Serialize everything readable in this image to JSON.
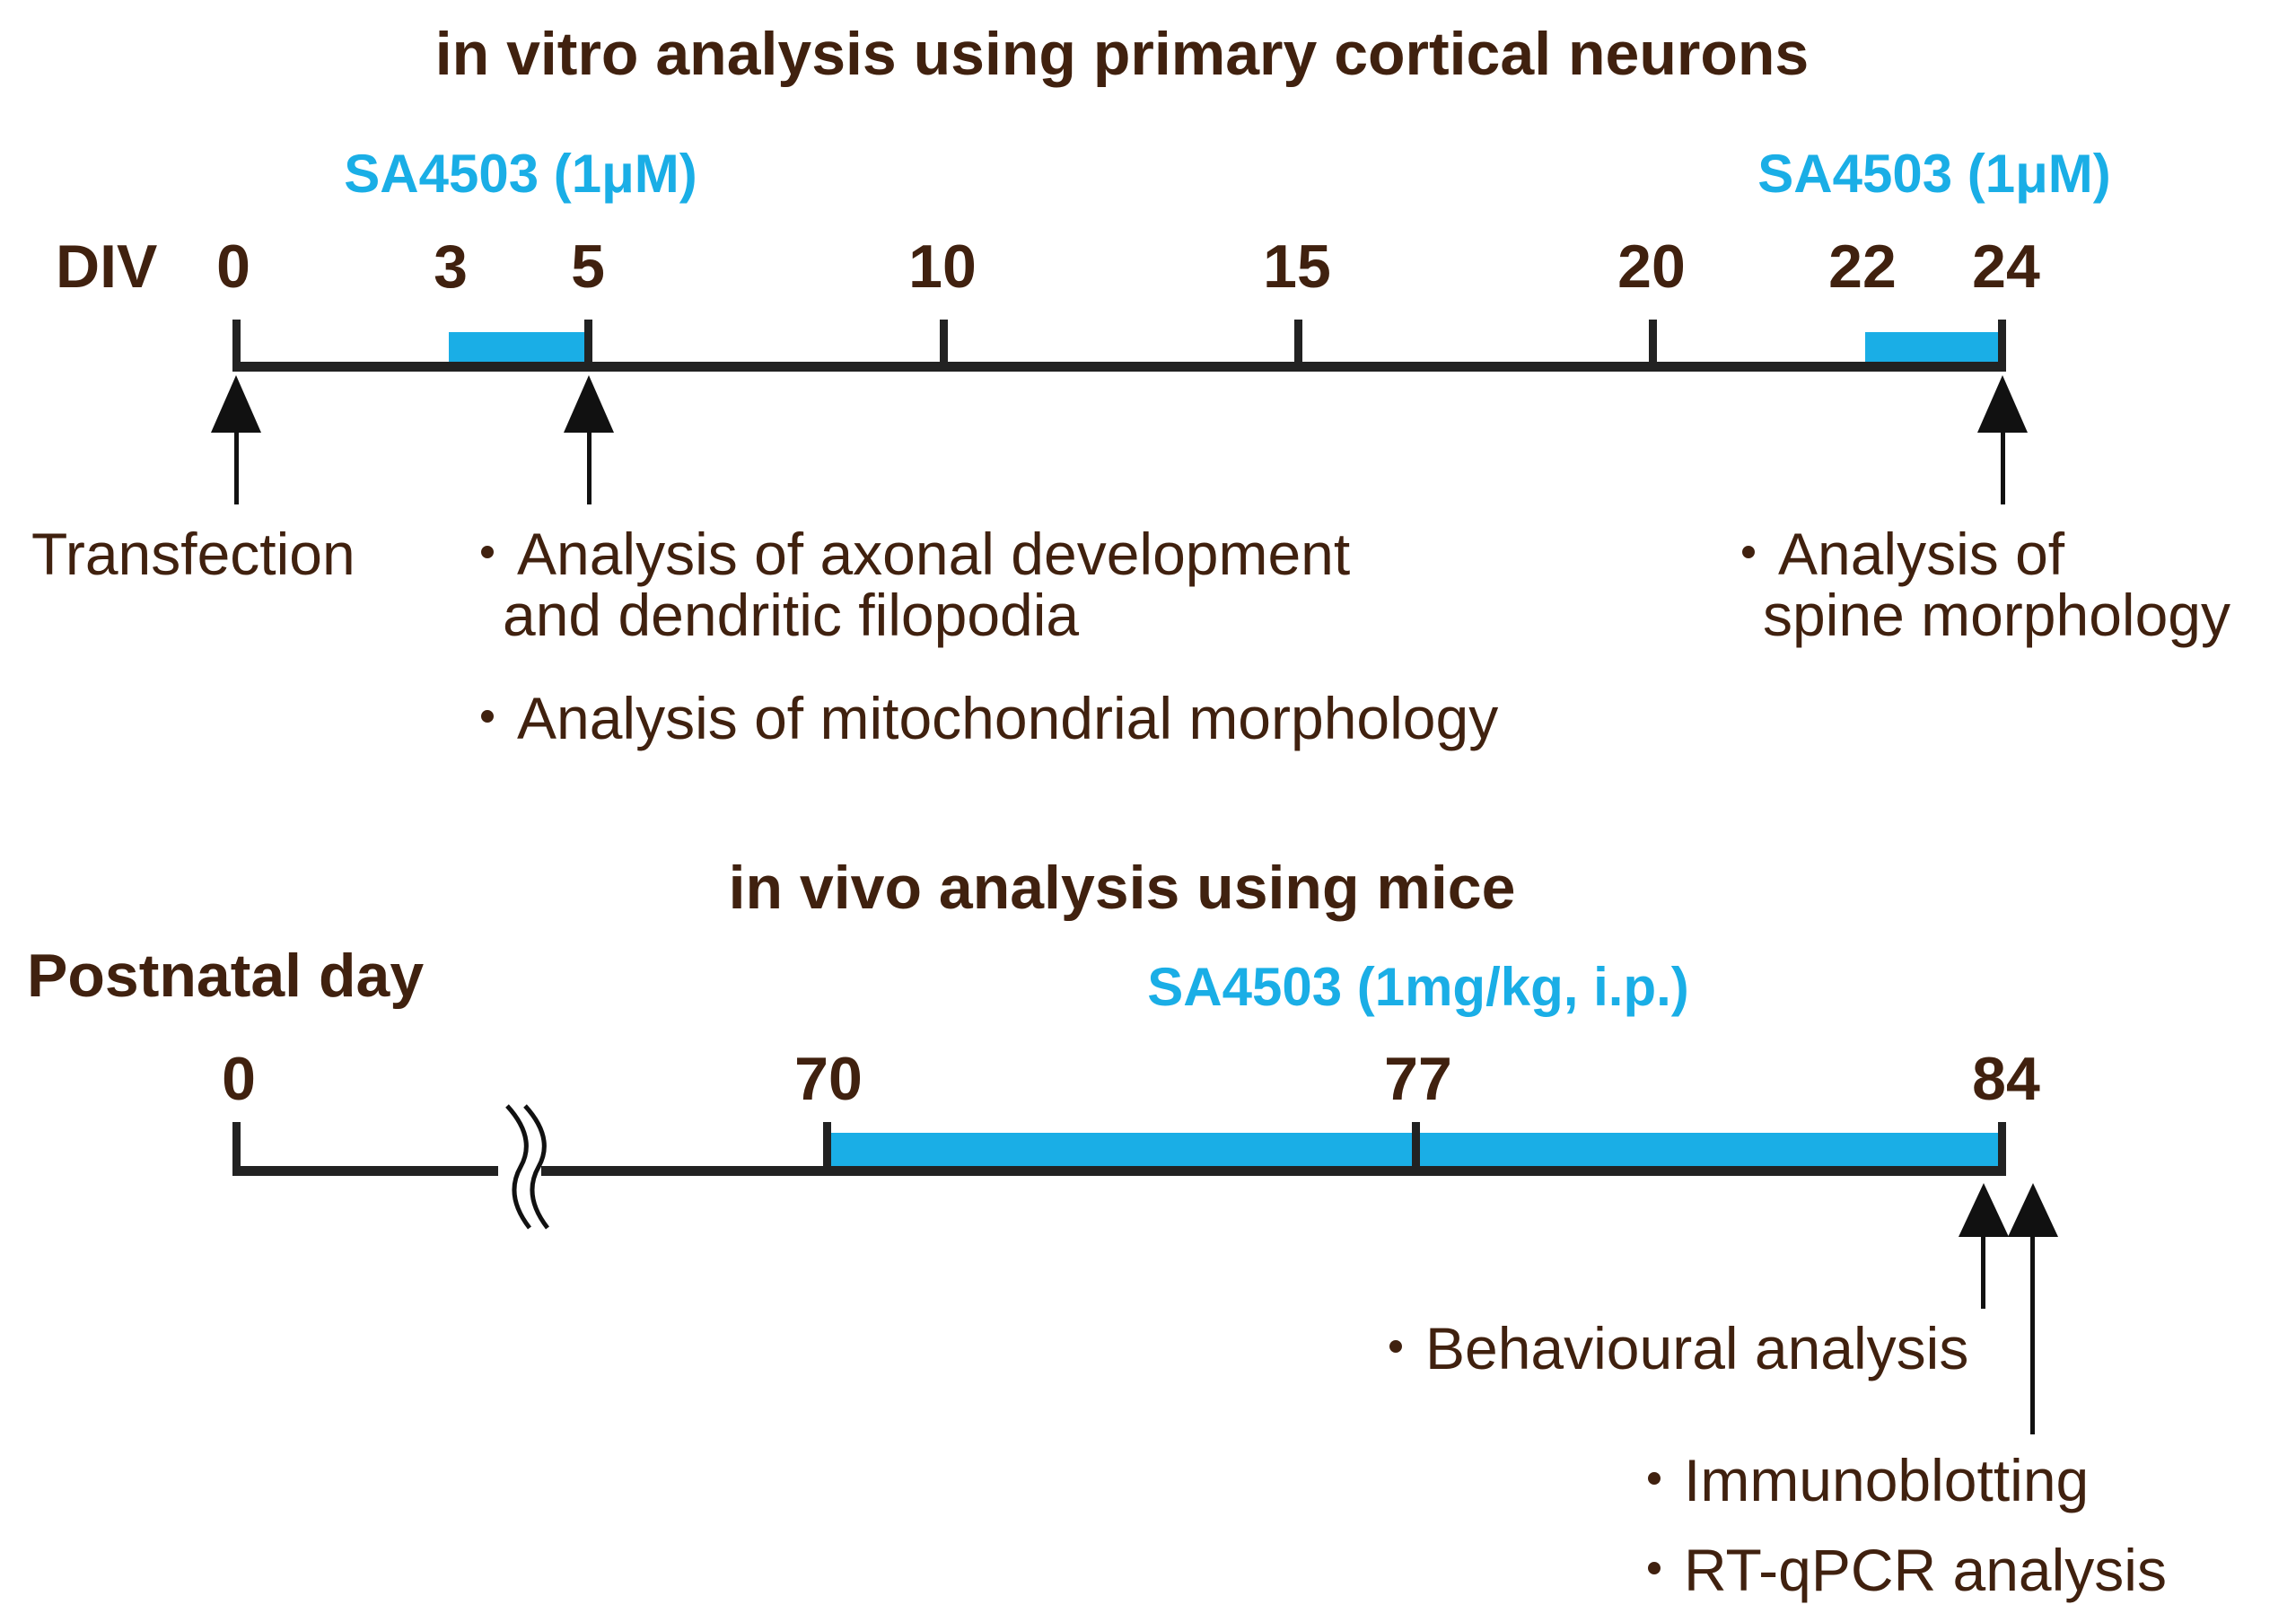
{
  "in_vitro": {
    "title": "in vitro analysis using primary cortical neurons",
    "axis_label": "DIV",
    "ticks": [
      {
        "label": "0",
        "value": 0
      },
      {
        "label": "3",
        "value": 3
      },
      {
        "label": "5",
        "value": 5
      },
      {
        "label": "10",
        "value": 10
      },
      {
        "label": "15",
        "value": 15
      },
      {
        "label": "20",
        "value": 20
      },
      {
        "label": "22",
        "value": 22
      },
      {
        "label": "24",
        "value": 24
      }
    ],
    "range": [
      0,
      24
    ],
    "treatments": [
      {
        "label": "SA4503 (1μM)",
        "start": 3,
        "end": 5
      },
      {
        "label": "SA4503 (1μM)",
        "start": 22,
        "end": 24
      }
    ],
    "events": [
      {
        "at": 0,
        "lines": [
          "Transfection"
        ]
      },
      {
        "at": 5,
        "lines": [
          "・Analysis of axonal development",
          "and dendritic filopodia",
          "・Analysis of mitochondrial morphology"
        ]
      },
      {
        "at": 24,
        "lines": [
          "・Analysis of",
          "spine morphology"
        ]
      }
    ]
  },
  "in_vivo": {
    "title": "in vivo analysis using mice",
    "axis_label": "Postnatal day",
    "ticks": [
      {
        "label": "0",
        "value": 0
      },
      {
        "label": "70",
        "value": 70
      },
      {
        "label": "77",
        "value": 77
      },
      {
        "label": "84",
        "value": 84
      }
    ],
    "treatment": {
      "label": "SA4503 (1mg/kg, i.p.)",
      "start": 70,
      "end": 84
    },
    "axis_break_between": [
      0,
      70
    ],
    "events": [
      {
        "at": 84,
        "lines": [
          "・Behavioural analysis"
        ]
      },
      {
        "at": 84,
        "lines": [
          "・Immunoblotting",
          "・RT-qPCR analysis"
        ]
      }
    ]
  },
  "colors": {
    "text": "#40210f",
    "treatment": "#1aaee6",
    "axis": "#222222"
  }
}
